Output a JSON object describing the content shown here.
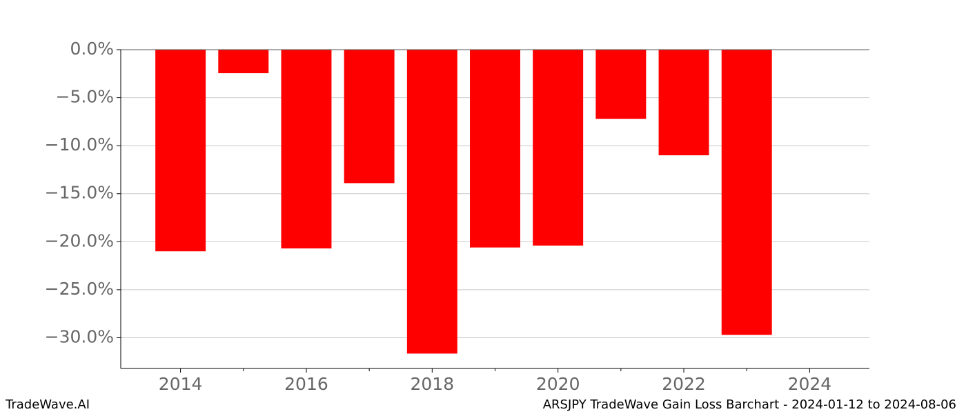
{
  "chart_data": {
    "type": "bar",
    "title": "ARSJPY TradeWave Gain Loss Barchart - 2024-01-12 to 2024-08-06",
    "brand": "TradeWave.AI",
    "x": [
      2014,
      2015,
      2016,
      2017,
      2018,
      2019,
      2020,
      2021,
      2022,
      2023
    ],
    "values": [
      -21.0,
      -2.45,
      -20.7,
      -13.9,
      -31.65,
      -20.6,
      -20.4,
      -7.2,
      -11.0,
      -29.7
    ],
    "color": "#ff0000",
    "xlim": [
      2013.05,
      2024.95
    ],
    "xticks": [
      2014,
      2016,
      2018,
      2020,
      2022,
      2024
    ],
    "xminorticks": [
      2015,
      2017,
      2019,
      2021,
      2023
    ],
    "ylim": [
      -33.2,
      0
    ],
    "yticks": [
      {
        "value": 0,
        "label": "0.0%"
      },
      {
        "value": -5,
        "label": "−5.0%"
      },
      {
        "value": -10,
        "label": "−10.0%"
      },
      {
        "value": -15,
        "label": "−15.0%"
      },
      {
        "value": -20,
        "label": "−20.0%"
      },
      {
        "value": -25,
        "label": "−25.0%"
      },
      {
        "value": -30,
        "label": "−30.0%"
      }
    ],
    "grid": true
  }
}
